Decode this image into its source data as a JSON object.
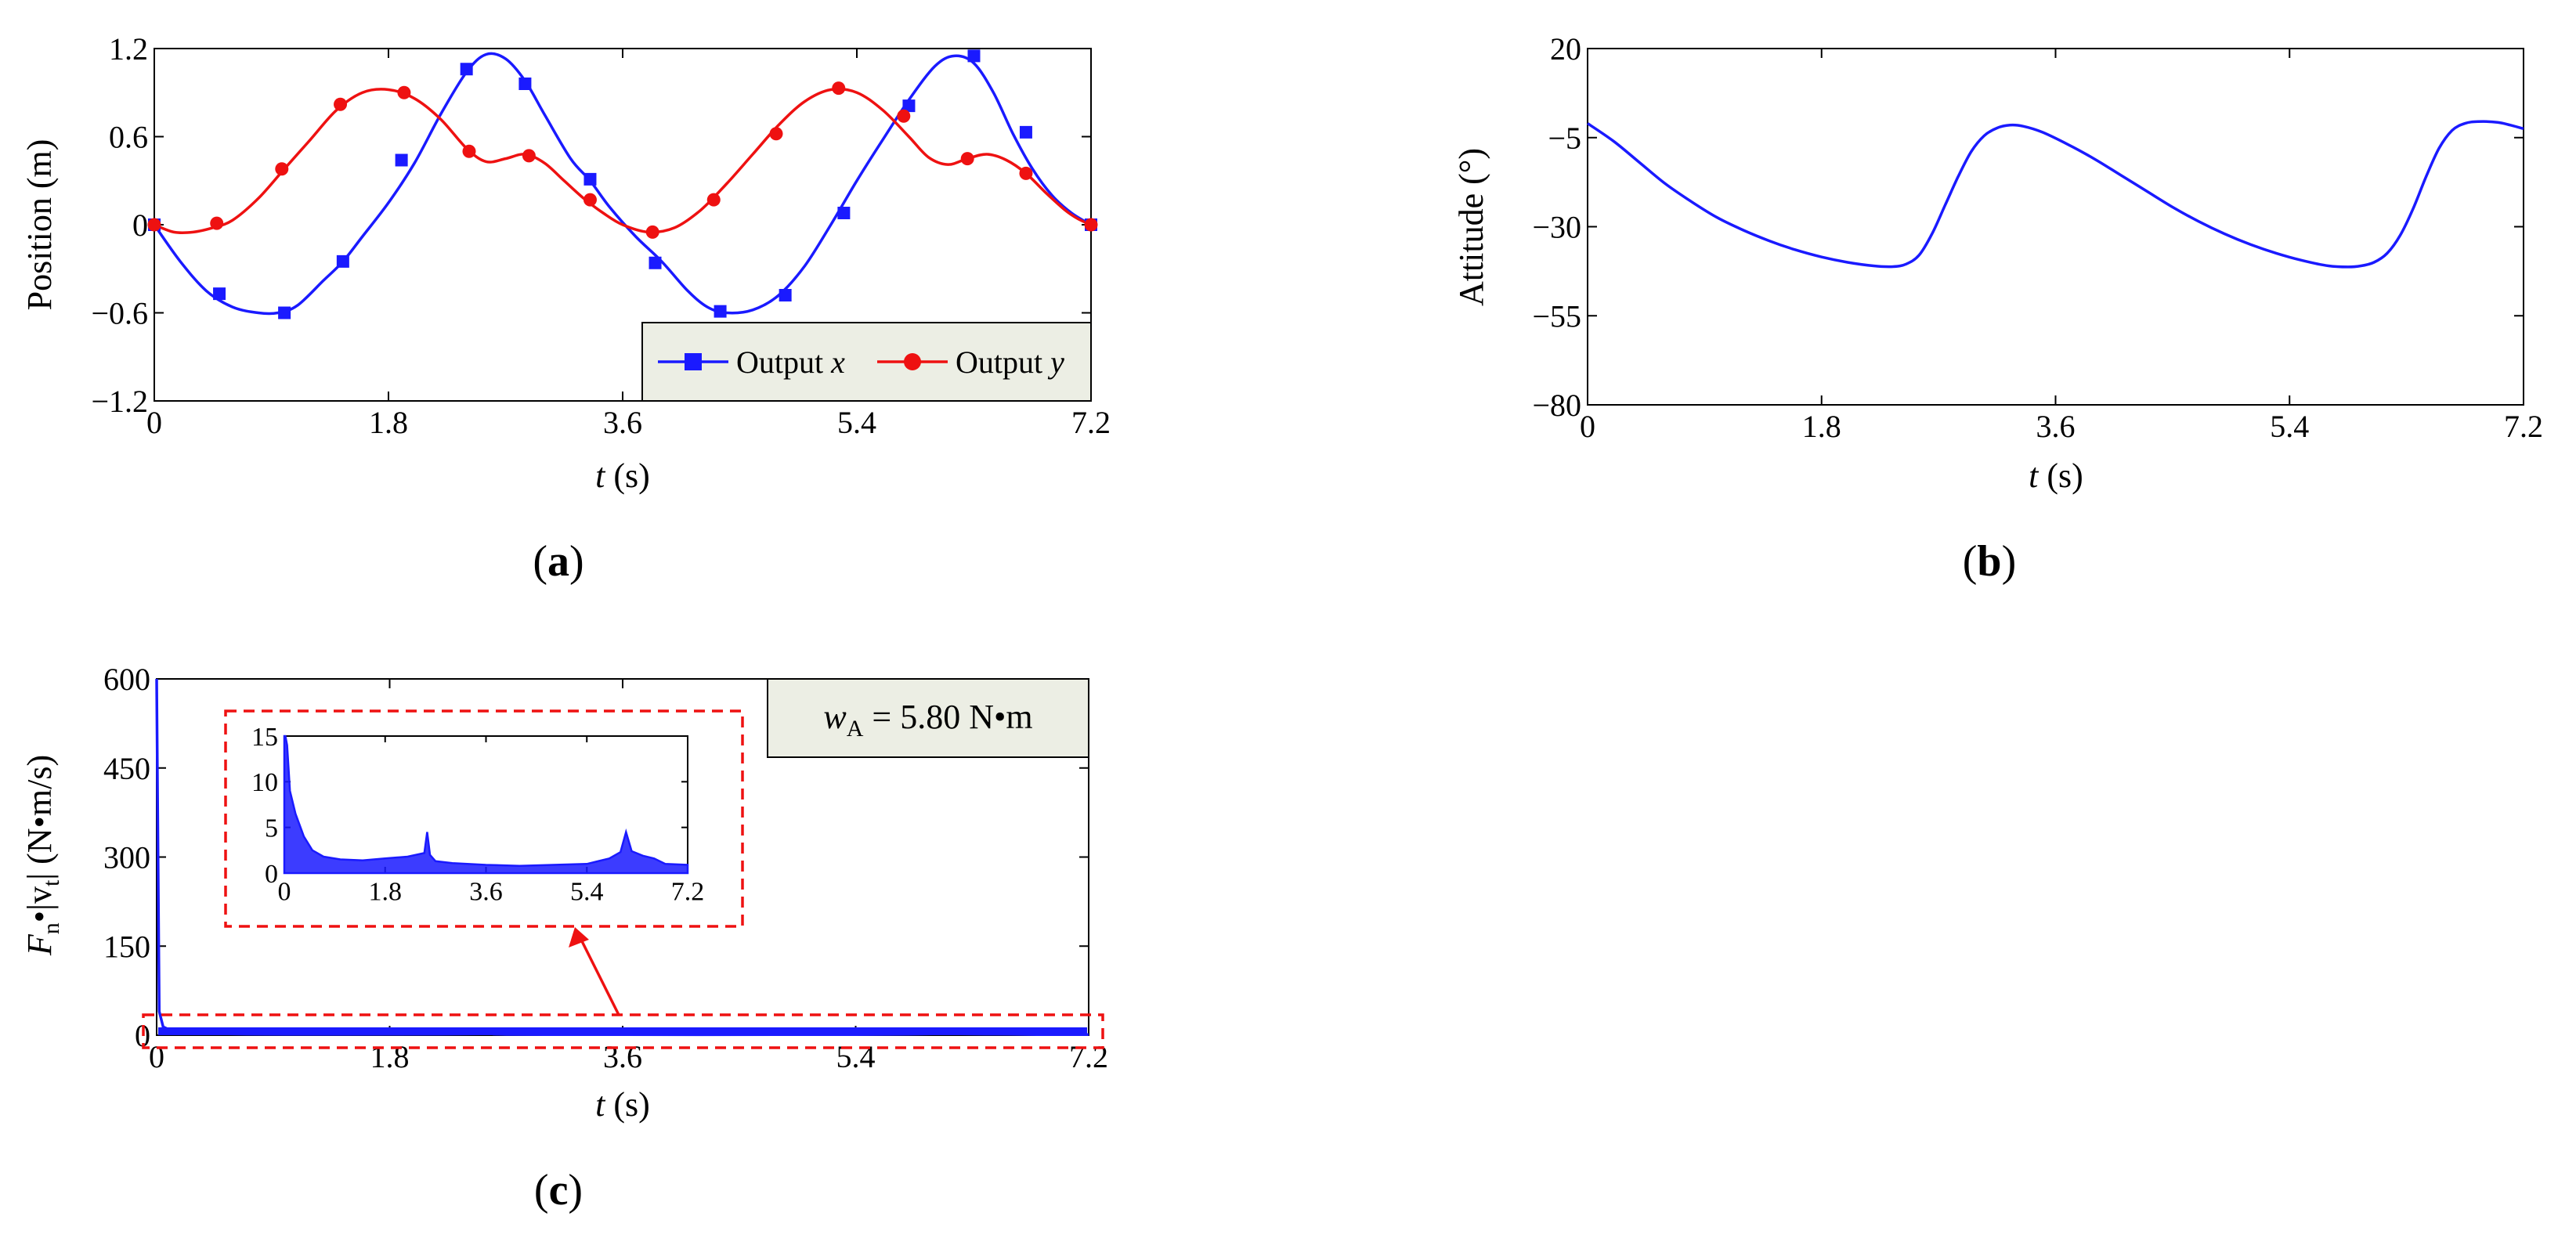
{
  "chart_data": [
    {
      "id": "a",
      "type": "line",
      "caption_letter": "a",
      "xlabel_var": "t",
      "xlabel_unit": "(s)",
      "ylabel": "Position (m)",
      "xlim": [
        0,
        7.2
      ],
      "ylim": [
        -1.2,
        1.2
      ],
      "xticks": [
        "0",
        "1.8",
        "3.6",
        "5.4",
        "7.2"
      ],
      "yticks": [
        "1.2",
        "0.6",
        "0",
        "-0.6",
        "-1.2"
      ],
      "legend": {
        "position": "bottom-right",
        "entries": [
          {
            "prefix": "Output ",
            "var": "x",
            "color": "#1a1aff",
            "marker": "square"
          },
          {
            "prefix": "Output ",
            "var": "y",
            "color": "#ee1111",
            "marker": "circle"
          }
        ]
      },
      "series": [
        {
          "name": "Output x",
          "color": "#1a1aff",
          "x": [
            0,
            0.2,
            0.4,
            0.6,
            0.8,
            0.95,
            1.1,
            1.3,
            1.45,
            1.6,
            1.8,
            2.0,
            2.2,
            2.4,
            2.55,
            2.7,
            2.85,
            3.0,
            3.2,
            3.35,
            3.5,
            3.7,
            3.9,
            4.1,
            4.25,
            4.4,
            4.6,
            4.8,
            5.0,
            5.2,
            5.4,
            5.6,
            5.8,
            6.0,
            6.15,
            6.3,
            6.45,
            6.6,
            6.75,
            6.9,
            7.05,
            7.2
          ],
          "y": [
            0,
            -0.25,
            -0.45,
            -0.56,
            -0.6,
            -0.6,
            -0.55,
            -0.38,
            -0.25,
            -0.08,
            0.15,
            0.42,
            0.75,
            1.04,
            1.16,
            1.13,
            0.98,
            0.75,
            0.45,
            0.3,
            0.12,
            -0.08,
            -0.25,
            -0.45,
            -0.56,
            -0.6,
            -0.58,
            -0.48,
            -0.28,
            0.0,
            0.3,
            0.58,
            0.85,
            1.08,
            1.15,
            1.1,
            0.9,
            0.62,
            0.38,
            0.2,
            0.08,
            0
          ],
          "markers_x": [
            0,
            0.5,
            1.0,
            1.45,
            1.9,
            2.4,
            2.85,
            3.35,
            3.85,
            4.35,
            4.85,
            5.3,
            5.8,
            6.3,
            6.7,
            7.2
          ],
          "markers_y": [
            0,
            -0.47,
            -0.6,
            -0.25,
            0.44,
            1.06,
            0.96,
            0.31,
            -0.26,
            -0.59,
            -0.48,
            0.08,
            0.81,
            1.15,
            0.63,
            0
          ]
        },
        {
          "name": "Output y",
          "color": "#ee1111",
          "x": [
            0,
            0.15,
            0.3,
            0.45,
            0.6,
            0.8,
            1.0,
            1.2,
            1.4,
            1.6,
            1.8,
            2.0,
            2.2,
            2.4,
            2.55,
            2.7,
            2.85,
            3.0,
            3.15,
            3.3,
            3.45,
            3.6,
            3.8,
            4.0,
            4.2,
            4.4,
            4.6,
            4.8,
            5.0,
            5.2,
            5.4,
            5.6,
            5.8,
            5.95,
            6.1,
            6.25,
            6.4,
            6.55,
            6.7,
            6.85,
            7.0,
            7.1,
            7.2
          ],
          "y": [
            0,
            -0.05,
            -0.05,
            -0.02,
            0.03,
            0.18,
            0.38,
            0.58,
            0.78,
            0.9,
            0.92,
            0.86,
            0.72,
            0.52,
            0.43,
            0.45,
            0.48,
            0.42,
            0.3,
            0.18,
            0.08,
            0.0,
            -0.05,
            -0.02,
            0.1,
            0.28,
            0.48,
            0.68,
            0.84,
            0.92,
            0.9,
            0.78,
            0.6,
            0.46,
            0.41,
            0.45,
            0.48,
            0.44,
            0.35,
            0.22,
            0.1,
            0.04,
            0
          ],
          "markers_x": [
            0,
            0.48,
            0.98,
            1.43,
            1.92,
            2.42,
            2.88,
            3.35,
            3.83,
            4.3,
            4.78,
            5.26,
            5.76,
            6.25,
            6.7,
            7.2
          ],
          "markers_y": [
            0,
            0.01,
            0.38,
            0.82,
            0.9,
            0.5,
            0.47,
            0.17,
            -0.05,
            0.17,
            0.62,
            0.93,
            0.74,
            0.45,
            0.35,
            0
          ]
        }
      ]
    },
    {
      "id": "b",
      "type": "line",
      "caption_letter": "b",
      "xlabel_var": "t",
      "xlabel_unit": "(s)",
      "ylabel": "Attitude (°)",
      "xlim": [
        0,
        7.2
      ],
      "ylim": [
        -80,
        20
      ],
      "xticks": [
        "0",
        "1.8",
        "3.6",
        "5.4",
        "7.2"
      ],
      "yticks": [
        "20",
        "-5",
        "-30",
        "-55",
        "-80"
      ],
      "series": [
        {
          "name": "Attitude",
          "color": "#1a1aff",
          "x": [
            0,
            0.2,
            0.4,
            0.6,
            0.8,
            1.0,
            1.2,
            1.4,
            1.6,
            1.8,
            2.0,
            2.2,
            2.35,
            2.45,
            2.55,
            2.65,
            2.75,
            2.85,
            2.95,
            3.05,
            3.15,
            3.25,
            3.35,
            3.5,
            3.7,
            3.9,
            4.1,
            4.3,
            4.5,
            4.7,
            4.9,
            5.1,
            5.3,
            5.5,
            5.7,
            5.85,
            5.95,
            6.05,
            6.15,
            6.25,
            6.35,
            6.45,
            6.55,
            6.65,
            6.75,
            6.85,
            7.0,
            7.1,
            7.2
          ],
          "y": [
            -1,
            -6,
            -12,
            -18,
            -23,
            -27.5,
            -31,
            -34,
            -36.5,
            -38.5,
            -40,
            -41,
            -41.2,
            -40.5,
            -38,
            -32,
            -24,
            -16,
            -9,
            -4.5,
            -2.3,
            -1.5,
            -1.8,
            -3.5,
            -7,
            -11,
            -15.5,
            -20,
            -24.5,
            -28.5,
            -32,
            -35,
            -37.5,
            -39.5,
            -41,
            -41.3,
            -41,
            -40,
            -37.5,
            -32.5,
            -25,
            -16,
            -8,
            -3,
            -1,
            -0.5,
            -0.7,
            -1.5,
            -2.5
          ]
        }
      ]
    },
    {
      "id": "c",
      "type": "line",
      "caption_letter": "c",
      "xlabel_var": "t",
      "xlabel_unit": "(s)",
      "ylabel_main": "F",
      "ylabel_sub1": "n",
      "ylabel_mid": "•|v",
      "ylabel_sub2": "t",
      "ylabel_unit": "| (N•m/s)",
      "xlim": [
        0,
        7.2
      ],
      "ylim": [
        0,
        600
      ],
      "xticks": [
        "0",
        "1.8",
        "3.6",
        "5.4",
        "7.2"
      ],
      "yticks": [
        "600",
        "450",
        "300",
        "150",
        "0"
      ],
      "annotation_var": "w",
      "annotation_sub": "A",
      "annotation_value": "= 5.80 N•m",
      "inset": {
        "xlim": [
          0,
          7.2
        ],
        "ylim": [
          0,
          15
        ],
        "xticks": [
          "0",
          "1.8",
          "3.6",
          "5.4",
          "7.2"
        ],
        "yticks": [
          "15",
          "10",
          "5",
          "0"
        ]
      },
      "series": [
        {
          "name": "Fn·|vt|",
          "color": "#1a1aff",
          "x": [
            0,
            0.02,
            0.05,
            0.1,
            0.2,
            0.35,
            0.5,
            0.7,
            1.0,
            1.4,
            1.8,
            2.2,
            2.5,
            2.55,
            2.6,
            2.7,
            3.0,
            3.6,
            4.2,
            4.8,
            5.4,
            5.8,
            6.0,
            6.1,
            6.2,
            6.4,
            6.6,
            6.8,
            7.2
          ],
          "y": [
            600,
            40,
            14,
            9,
            6.5,
            4,
            2.5,
            1.8,
            1.5,
            1.4,
            1.6,
            1.8,
            2.2,
            4.5,
            2.0,
            1.3,
            1.1,
            0.9,
            0.8,
            0.9,
            1.0,
            1.6,
            2.3,
            4.5,
            2.4,
            1.9,
            1.6,
            1.0,
            0.9
          ]
        }
      ]
    }
  ]
}
